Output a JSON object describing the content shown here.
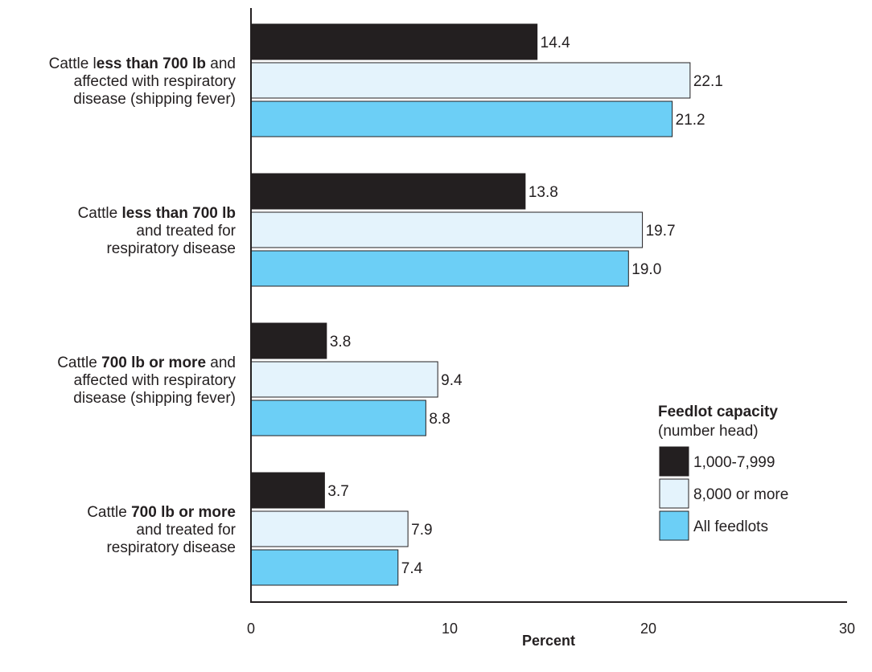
{
  "chart_data": {
    "type": "bar",
    "orientation": "horizontal",
    "categories": [
      {
        "lines": [
          [
            {
              "t": "Cattle l"
            },
            {
              "t": "ess than 700 lb",
              "b": true
            },
            {
              "t": " and"
            }
          ],
          [
            {
              "t": "affected with respiratory"
            }
          ],
          [
            {
              "t": "disease (shipping fever)"
            }
          ]
        ]
      },
      {
        "lines": [
          [
            {
              "t": "Cattle "
            },
            {
              "t": "less than 700 lb",
              "b": true
            }
          ],
          [
            {
              "t": "and treated for"
            }
          ],
          [
            {
              "t": "respiratory disease"
            }
          ]
        ]
      },
      {
        "lines": [
          [
            {
              "t": "Cattle "
            },
            {
              "t": "700 lb or more",
              "b": true
            },
            {
              "t": " and"
            }
          ],
          [
            {
              "t": "affected with respiratory"
            }
          ],
          [
            {
              "t": "disease (shipping fever)"
            }
          ]
        ]
      },
      {
        "lines": [
          [
            {
              "t": "Cattle "
            },
            {
              "t": "700 lb or more",
              "b": true
            }
          ],
          [
            {
              "t": "and treated for"
            }
          ],
          [
            {
              "t": "respiratory disease"
            }
          ]
        ]
      }
    ],
    "series": [
      {
        "name": "1,000-7,999",
        "color": "#231f20",
        "values": [
          14.4,
          13.8,
          3.8,
          3.7
        ],
        "labels": [
          "14.4",
          "13.8",
          "3.8",
          "3.7"
        ]
      },
      {
        "name": "8,000 or more",
        "color": "#e4f3fc",
        "values": [
          22.1,
          19.7,
          9.4,
          7.9
        ],
        "labels": [
          "22.1",
          "19.7",
          "9.4",
          "7.9"
        ]
      },
      {
        "name": "All feedlots",
        "color": "#6ccff6",
        "values": [
          21.2,
          19.0,
          8.8,
          7.4
        ],
        "labels": [
          "21.2",
          "19.0",
          "8.8",
          "7.4"
        ]
      }
    ],
    "xlabel": "Percent",
    "xlim": [
      0,
      30
    ],
    "xticks": [
      0,
      10,
      20,
      30
    ],
    "xtick_labels": [
      "0",
      "10",
      "20",
      "30"
    ],
    "grid": false,
    "legend": {
      "title": "Feedlot capacity",
      "subtitle": "(number head)",
      "placement": "bottom-right"
    }
  }
}
